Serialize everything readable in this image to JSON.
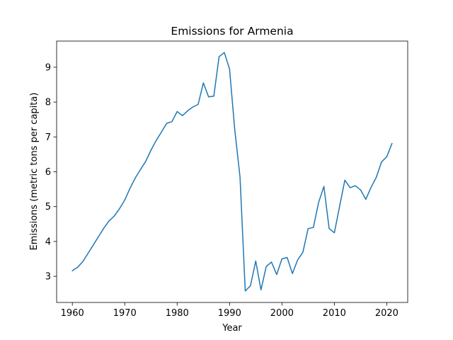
{
  "chart_data": {
    "type": "line",
    "title": "Emissions for Armenia",
    "xlabel": "Year",
    "ylabel": "Emissions (metric tons per capita)",
    "xlim": [
      1957,
      2024
    ],
    "ylim": [
      2.25,
      9.75
    ],
    "xticks": [
      1960,
      1970,
      1980,
      1990,
      2000,
      2010,
      2020
    ],
    "yticks": [
      3,
      4,
      5,
      6,
      7,
      8,
      9
    ],
    "grid": false,
    "line_color": "#1f77b4",
    "series": [
      {
        "x": [
          1960,
          1961,
          1962,
          1963,
          1964,
          1965,
          1966,
          1967,
          1968,
          1969,
          1970,
          1971,
          1972,
          1973,
          1974,
          1975,
          1976,
          1977,
          1978,
          1979,
          1980,
          1981,
          1982,
          1983,
          1984,
          1985,
          1986,
          1987,
          1988,
          1989,
          1990,
          1991,
          1992,
          1993,
          1994,
          1995,
          1996,
          1997,
          1998,
          1999,
          2000,
          2001,
          2002,
          2003,
          2004,
          2005,
          2006,
          2007,
          2008,
          2009,
          2010,
          2011,
          2012,
          2013,
          2014,
          2015,
          2016,
          2017,
          2018,
          2019,
          2020,
          2021
        ],
        "values": [
          3.16,
          3.26,
          3.42,
          3.66,
          3.9,
          4.14,
          4.38,
          4.59,
          4.73,
          4.94,
          5.19,
          5.52,
          5.82,
          6.06,
          6.3,
          6.62,
          6.9,
          7.14,
          7.39,
          7.44,
          7.73,
          7.61,
          7.75,
          7.86,
          7.93,
          8.55,
          8.15,
          8.17,
          9.3,
          9.42,
          8.95,
          7.2,
          5.85,
          2.58,
          2.73,
          3.44,
          2.61,
          3.28,
          3.41,
          3.05,
          3.5,
          3.54,
          3.08,
          3.47,
          3.69,
          4.37,
          4.4,
          5.12,
          5.58,
          4.37,
          4.25,
          5.01,
          5.76,
          5.54,
          5.6,
          5.48,
          5.21,
          5.55,
          5.84,
          6.28,
          6.43,
          6.81
        ]
      }
    ]
  }
}
